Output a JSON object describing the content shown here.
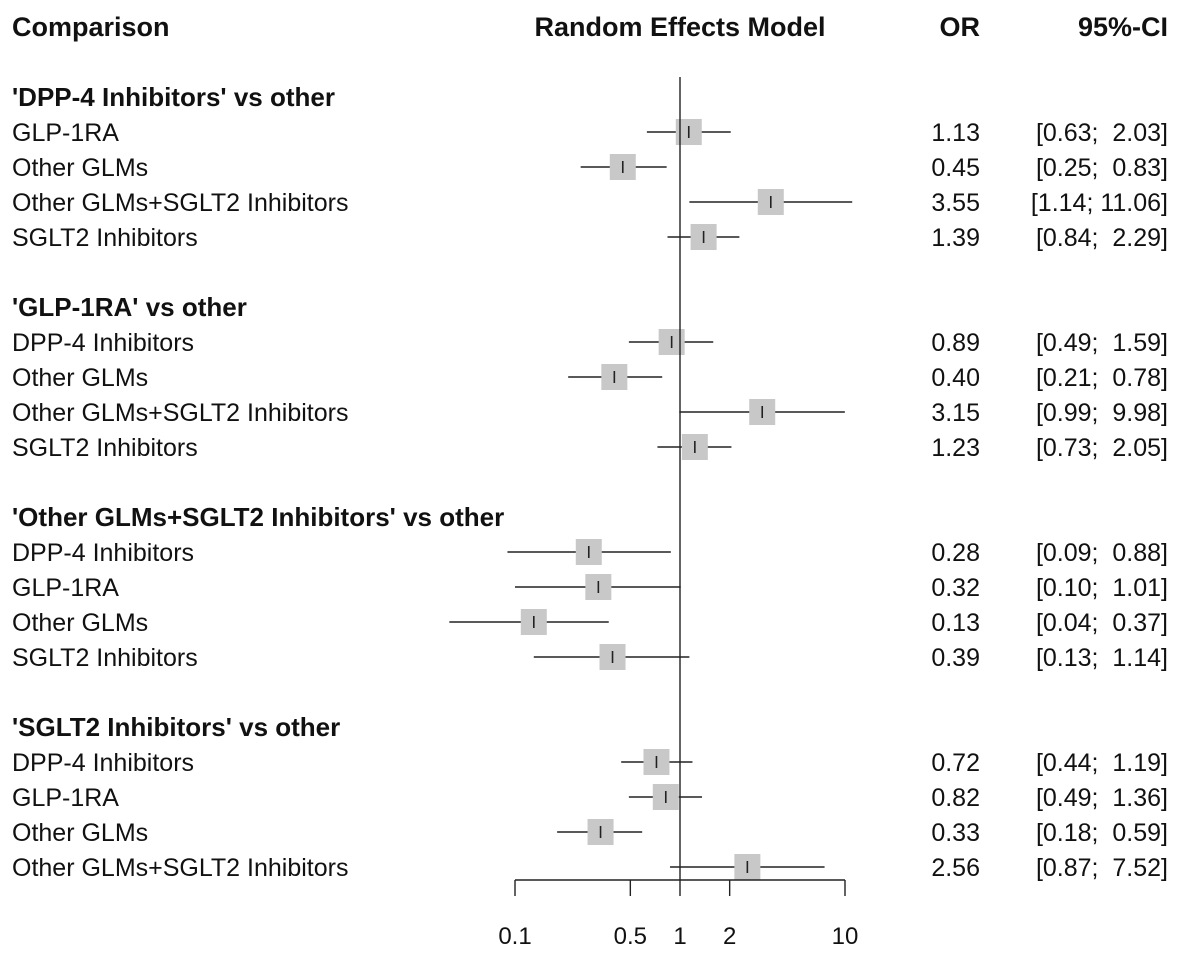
{
  "chart_data": {
    "type": "forest",
    "x_scale": "log",
    "xlim": [
      0.1,
      10
    ],
    "reference_line": 1,
    "x_ticks": [
      0.1,
      0.5,
      1,
      2,
      10
    ],
    "x_tick_labels": [
      "0.1",
      "0.5",
      "1",
      "2",
      "10"
    ],
    "headers": {
      "comparison": "Comparison",
      "model": "Random Effects Model",
      "or": "OR",
      "ci": "95%-CI"
    },
    "groups": [
      {
        "title": "'DPP-4 Inhibitors' vs other",
        "rows": [
          {
            "label": "GLP-1RA",
            "or": 1.13,
            "lower": 0.63,
            "upper": 2.03,
            "or_text": "1.13",
            "ci_text": "[0.63;  2.03]"
          },
          {
            "label": "Other GLMs",
            "or": 0.45,
            "lower": 0.25,
            "upper": 0.83,
            "or_text": "0.45",
            "ci_text": "[0.25;  0.83]"
          },
          {
            "label": "Other GLMs+SGLT2 Inhibitors",
            "or": 3.55,
            "lower": 1.14,
            "upper": 11.06,
            "or_text": "3.55",
            "ci_text": "[1.14; 11.06]"
          },
          {
            "label": "SGLT2 Inhibitors",
            "or": 1.39,
            "lower": 0.84,
            "upper": 2.29,
            "or_text": "1.39",
            "ci_text": "[0.84;  2.29]"
          }
        ]
      },
      {
        "title": "'GLP-1RA' vs other",
        "rows": [
          {
            "label": "DPP-4 Inhibitors",
            "or": 0.89,
            "lower": 0.49,
            "upper": 1.59,
            "or_text": "0.89",
            "ci_text": "[0.49;  1.59]"
          },
          {
            "label": "Other GLMs",
            "or": 0.4,
            "lower": 0.21,
            "upper": 0.78,
            "or_text": "0.40",
            "ci_text": "[0.21;  0.78]"
          },
          {
            "label": "Other GLMs+SGLT2 Inhibitors",
            "or": 3.15,
            "lower": 0.99,
            "upper": 9.98,
            "or_text": "3.15",
            "ci_text": "[0.99;  9.98]"
          },
          {
            "label": "SGLT2 Inhibitors",
            "or": 1.23,
            "lower": 0.73,
            "upper": 2.05,
            "or_text": "1.23",
            "ci_text": "[0.73;  2.05]"
          }
        ]
      },
      {
        "title": "'Other GLMs+SGLT2 Inhibitors' vs other",
        "rows": [
          {
            "label": "DPP-4 Inhibitors",
            "or": 0.28,
            "lower": 0.09,
            "upper": 0.88,
            "or_text": "0.28",
            "ci_text": "[0.09;  0.88]"
          },
          {
            "label": "GLP-1RA",
            "or": 0.32,
            "lower": 0.1,
            "upper": 1.01,
            "or_text": "0.32",
            "ci_text": "[0.10;  1.01]"
          },
          {
            "label": "Other GLMs",
            "or": 0.13,
            "lower": 0.04,
            "upper": 0.37,
            "or_text": "0.13",
            "ci_text": "[0.04;  0.37]"
          },
          {
            "label": "SGLT2 Inhibitors",
            "or": 0.39,
            "lower": 0.13,
            "upper": 1.14,
            "or_text": "0.39",
            "ci_text": "[0.13;  1.14]"
          }
        ]
      },
      {
        "title": "'SGLT2 Inhibitors' vs other",
        "rows": [
          {
            "label": "DPP-4 Inhibitors",
            "or": 0.72,
            "lower": 0.44,
            "upper": 1.19,
            "or_text": "0.72",
            "ci_text": "[0.44;  1.19]"
          },
          {
            "label": "GLP-1RA",
            "or": 0.82,
            "lower": 0.49,
            "upper": 1.36,
            "or_text": "0.82",
            "ci_text": "[0.49;  1.36]"
          },
          {
            "label": "Other GLMs",
            "or": 0.33,
            "lower": 0.18,
            "upper": 0.59,
            "or_text": "0.33",
            "ci_text": "[0.18;  0.59]"
          },
          {
            "label": "Other GLMs+SGLT2 Inhibitors",
            "or": 2.56,
            "lower": 0.87,
            "upper": 7.52,
            "or_text": "2.56",
            "ci_text": "[0.87;  7.52]"
          }
        ]
      }
    ],
    "colors": {
      "box": "#c8c8c8",
      "line": "#222222",
      "text": "#111111"
    }
  }
}
